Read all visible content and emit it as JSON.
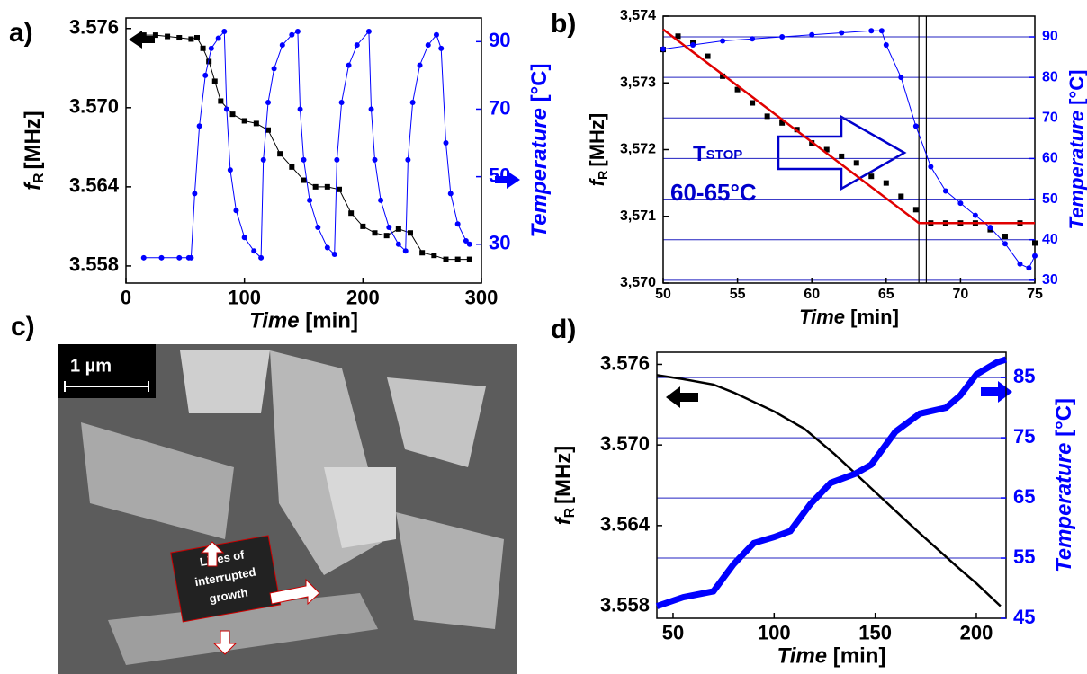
{
  "chart_data": [
    {
      "type": "line",
      "panel": "a)",
      "xlim": [
        0,
        300
      ],
      "xticks": [
        0,
        100,
        200,
        300
      ],
      "ylim": [
        3.5567,
        3.5768
      ],
      "yticks": [
        3.558,
        3.564,
        {
          "value": 3.57,
          "label": "3.570"
        },
        3.576
      ],
      "y2lim": [
        18.5,
        97
      ],
      "y2ticks": [
        30,
        50,
        70,
        90
      ],
      "grid": false,
      "xlabel": {
        "name": "Time",
        "unit": "[min]"
      },
      "ylabel": {
        "name": "f",
        "sub": "R",
        "unit": "[MHz]"
      },
      "y2label": {
        "name": "Temperature",
        "unit": "[°C]"
      },
      "series": [
        {
          "color": "#000000",
          "marker": "square",
          "x": [
            15,
            25,
            35,
            45,
            55,
            60,
            65,
            70,
            75,
            80,
            90,
            100,
            110,
            120,
            130,
            140,
            150,
            160,
            170,
            180,
            190,
            200,
            210,
            220,
            230,
            240,
            250,
            260,
            270,
            280,
            290
          ],
          "values": [
            3.5755,
            3.5755,
            3.5754,
            3.5753,
            3.5752,
            3.5753,
            3.5745,
            3.5735,
            3.572,
            3.5705,
            3.5695,
            3.569,
            3.5688,
            3.5683,
            3.5665,
            3.5655,
            3.5645,
            3.564,
            3.564,
            3.5638,
            3.562,
            3.561,
            3.5605,
            3.5603,
            3.5608,
            3.5605,
            3.559,
            3.5588,
            3.5585,
            3.5585,
            3.5585
          ]
        },
        {
          "color": "#0000ff",
          "marker": "dot",
          "axis": "y2",
          "x": [
            15,
            30,
            45,
            53,
            55,
            58,
            62,
            67,
            72,
            78,
            83,
            85,
            88,
            93,
            100,
            108,
            114,
            116,
            120,
            125,
            132,
            140,
            145,
            147,
            150,
            155,
            162,
            170,
            176,
            178,
            182,
            188,
            195,
            205,
            207,
            210,
            215,
            222,
            230,
            236,
            238,
            242,
            248,
            255,
            262,
            266,
            270,
            274,
            280,
            287,
            290
          ],
          "values": [
            26,
            26,
            26,
            26,
            26,
            45,
            65,
            80,
            88,
            91,
            93,
            70,
            52,
            40,
            32,
            28,
            26,
            55,
            72,
            82,
            89,
            92,
            93,
            70,
            55,
            43,
            35,
            29,
            27,
            55,
            72,
            83,
            89,
            93,
            70,
            55,
            43,
            35,
            30,
            28,
            55,
            72,
            83,
            89,
            92,
            88,
            60,
            45,
            36,
            31,
            30
          ]
        }
      ]
    },
    {
      "type": "line",
      "panel": "b)",
      "xlim": [
        50,
        75
      ],
      "xticks": [
        50,
        55,
        60,
        65,
        70,
        75
      ],
      "ylim": [
        3.57,
        3.574
      ],
      "yticks": [
        {
          "value": 3.57,
          "label": "3,570"
        },
        {
          "value": 3.571,
          "label": "3,571"
        },
        {
          "value": 3.572,
          "label": "3,572"
        },
        {
          "value": 3.573,
          "label": "3,573"
        },
        {
          "value": 3.574,
          "label": "3,574"
        }
      ],
      "y2lim": [
        29.3,
        95.1
      ],
      "y2ticks": [
        30,
        40,
        50,
        60,
        70,
        80,
        90
      ],
      "grid": true,
      "xlabel": {
        "name": "Time",
        "unit": "[min]"
      },
      "ylabel": {
        "name": "f",
        "sub": "R",
        "unit": "[MHz]"
      },
      "y2label": {
        "name": "Temperature",
        "unit": "[°C]"
      },
      "annotations": [
        "T",
        "STOP",
        "60-65°C"
      ],
      "vlines": [
        67.2,
        67.7
      ],
      "series": [
        {
          "color": "#000000",
          "marker": "square",
          "noline": true,
          "x": [
            50,
            51,
            52,
            53,
            54,
            55,
            56,
            57,
            58,
            59,
            60,
            61,
            62,
            63,
            64,
            65,
            66,
            67,
            68,
            69,
            70,
            71,
            72,
            73,
            74,
            75
          ],
          "values": [
            3.5735,
            3.5737,
            3.5736,
            3.5734,
            3.5731,
            3.5729,
            3.5727,
            3.5725,
            3.5724,
            3.5723,
            3.5721,
            3.572,
            3.5719,
            3.5718,
            3.5716,
            3.5715,
            3.5713,
            3.5711,
            3.5709,
            3.5709,
            3.5709,
            3.5709,
            3.5708,
            3.5707,
            3.5709,
            3.5706
          ]
        },
        {
          "color": "#0000ff",
          "marker": "dot",
          "axis": "y2",
          "x": [
            50,
            52,
            54,
            56,
            58,
            60,
            62,
            64,
            64.7,
            65,
            66,
            67,
            68,
            69,
            70,
            71,
            72,
            73,
            74,
            74.6,
            75
          ],
          "values": [
            87,
            88,
            89,
            89.5,
            90,
            90.5,
            91,
            91.5,
            91.5,
            88,
            80,
            68,
            58,
            52,
            49,
            46,
            43,
            39,
            34,
            33,
            36
          ]
        },
        {
          "color": "#e00000",
          "x": [
            50,
            67.2,
            75
          ],
          "values": [
            3.5738,
            3.5709,
            3.5709
          ]
        }
      ]
    },
    {
      "type": "line",
      "panel": "d)",
      "xlim": [
        42,
        214.7
      ],
      "xticks": [
        50,
        100,
        150,
        200
      ],
      "ylim": [
        3.5571,
        3.5769
      ],
      "yticks": [
        3.558,
        3.564,
        {
          "value": 3.57,
          "label": "3.570"
        },
        3.576
      ],
      "y2lim": [
        45,
        89.2
      ],
      "y2ticks": [
        45,
        55,
        65,
        75,
        85
      ],
      "grid": true,
      "xlabel": {
        "name": "Time",
        "unit": "[min]"
      },
      "ylabel": {
        "name": "f",
        "sub": "R",
        "unit": "[MHz]"
      },
      "y2label": {
        "name": "Temperature",
        "unit": "[°C]"
      },
      "series": [
        {
          "color": "#000000",
          "x": [
            42,
            55,
            70,
            80,
            100,
            115,
            130,
            150,
            170,
            190,
            200,
            212
          ],
          "values": [
            3.5752,
            3.5749,
            3.5745,
            3.5739,
            3.5725,
            3.5712,
            3.5693,
            3.5665,
            3.5637,
            3.561,
            3.5597,
            3.558
          ]
        },
        {
          "color": "#0000ff",
          "axis": "y2",
          "width": 7,
          "x": [
            42,
            55,
            70,
            80,
            90,
            100,
            108,
            118,
            128,
            140,
            148,
            160,
            172,
            185,
            192,
            200,
            210,
            214.7
          ],
          "values": [
            47,
            48.5,
            49.5,
            54,
            57.5,
            58.5,
            59.5,
            64,
            67.5,
            69,
            70.5,
            76,
            79,
            80,
            82,
            85.5,
            87.5,
            88
          ]
        }
      ]
    }
  ],
  "image": {
    "panel": "c)",
    "scale_label": "1 µm",
    "annotation": [
      "Lines of",
      "interrupted",
      "growth"
    ]
  }
}
